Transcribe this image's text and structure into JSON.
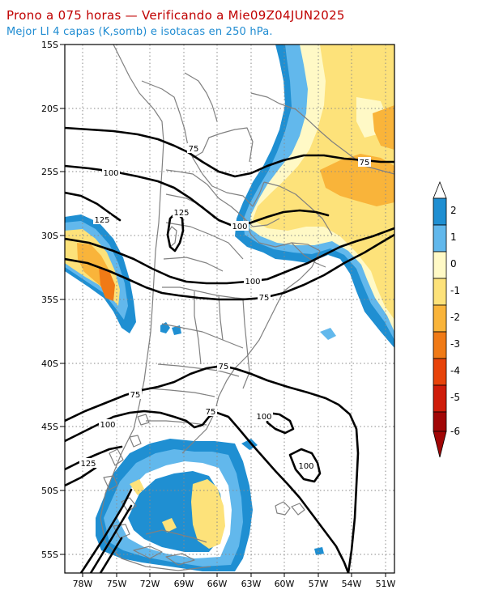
{
  "title": "Prono a 075 horas — Verificando a Mie09Z04JUN2025",
  "subtitle": "Mejor LI 4 capas (K,somb) e isotacas en 250 hPa.",
  "map": {
    "lat_labels": [
      "15S",
      "20S",
      "25S",
      "30S",
      "35S",
      "40S",
      "45S",
      "50S",
      "55S"
    ],
    "lon_labels": [
      "78W",
      "75W",
      "72W",
      "69W",
      "66W",
      "63W",
      "60W",
      "57W",
      "54W",
      "51W"
    ]
  },
  "colorbar": {
    "labels": [
      "2",
      "1",
      "0",
      "-1",
      "-2",
      "-3",
      "-4",
      "-5",
      "-6"
    ],
    "colors": [
      "#1f8fd2",
      "#62b8ec",
      "#fff9c6",
      "#fde27a",
      "#f9b43a",
      "#f07a16",
      "#e8430a",
      "#cf1c0a",
      "#a10606"
    ]
  },
  "isotachs": {
    "labels": [
      "75",
      "100",
      "125",
      "125",
      "100",
      "100",
      "75",
      "75",
      "75",
      "100",
      "125",
      "75",
      "100",
      "100",
      "75"
    ]
  }
}
